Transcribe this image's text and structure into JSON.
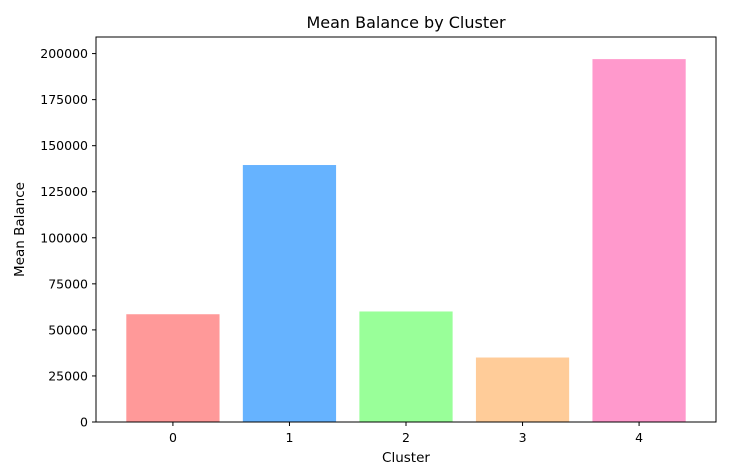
{
  "chart_data": {
    "type": "bar",
    "title": "Mean Balance by Cluster",
    "xlabel": "Cluster",
    "ylabel": "Mean Balance",
    "categories": [
      "0",
      "1",
      "2",
      "3",
      "4"
    ],
    "values": [
      58500,
      139500,
      60000,
      35000,
      197000
    ],
    "colors": [
      "#ff9999",
      "#66b3ff",
      "#99ff99",
      "#ffcc99",
      "#ff99cc"
    ],
    "ylim": [
      0,
      209000
    ],
    "yticks": [
      0,
      25000,
      50000,
      75000,
      100000,
      125000,
      150000,
      175000,
      200000
    ],
    "grid": false,
    "legend": false
  }
}
